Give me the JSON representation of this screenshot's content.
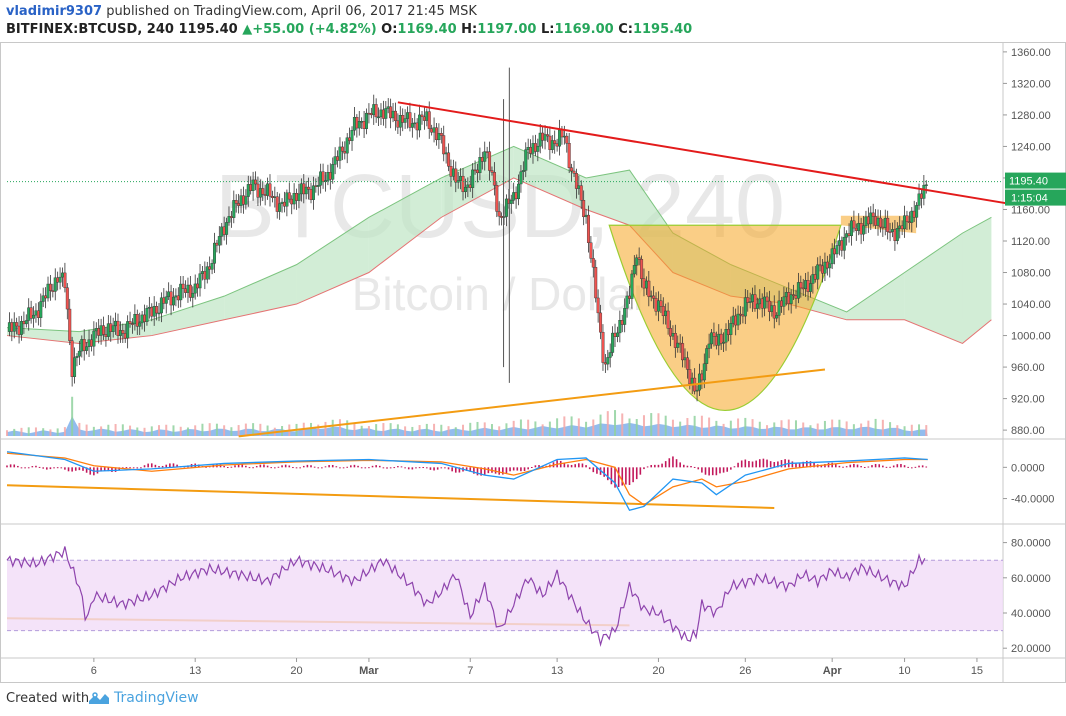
{
  "header": {
    "username": "vladimir9307",
    "published_text": " published on TradingView.com, April 06, 2017 21:45 MSK",
    "symbol": "BITFINEX:BTCUSD, 240",
    "last": " 1195.40 ",
    "change": "▲+55.00 (+4.82%)",
    "o_label": " O:",
    "o_value": "1169.40",
    "h_label": " H:",
    "h_value": "1197.00",
    "l_label": " L:",
    "l_value": "1169.00",
    "c_label": " C:",
    "c_value": "1195.40"
  },
  "watermark": {
    "line1": "BTCUSD, 240",
    "line2": "Bitcoin / Dollar"
  },
  "footer": {
    "created_with": "Created with",
    "brand": "TradingView"
  },
  "colors": {
    "up": "#26a65b",
    "down": "#ef5350",
    "trend_red": "#e31b1b",
    "trend_orange": "#f39c12",
    "cloud_green": "#bfe6c4",
    "cloud_red": "#f7c9c9",
    "cup_fill": "#f5a623",
    "rsi": "#8e44ad",
    "rsi_band": "#f1dcf7",
    "macd": "#2196f3",
    "signal": "#ff7f0e",
    "hist": "#c2185b",
    "volume": "#4a90e2"
  },
  "chart_data": {
    "type": "candlestick",
    "panes": [
      "price",
      "macd",
      "rsi"
    ],
    "price_axis": {
      "ylim": [
        870,
        1370
      ],
      "ticks": [
        1360,
        1320,
        1280,
        1240,
        1200,
        1160,
        1120,
        1080,
        1040,
        1000,
        960,
        920,
        880
      ],
      "tick_labels": [
        "1360.00",
        "1320.00",
        "1280.00",
        "1240.00",
        "1200.00",
        "1160.00",
        "1120.00",
        "1080.00",
        "1040.00",
        "1000.00",
        "960.00",
        "920.00",
        "880.00"
      ]
    },
    "last_price_label": "1195.40",
    "countdown_label": "1:15:04",
    "macd_axis": {
      "ylim": [
        -70,
        35
      ],
      "ticks": [
        0,
        -40
      ],
      "tick_labels": [
        "0.0000",
        "-40.0000"
      ]
    },
    "rsi_axis": {
      "ylim": [
        15,
        90
      ],
      "ticks": [
        80,
        60,
        40,
        20
      ],
      "tick_labels": [
        "80.0000",
        "60.0000",
        "40.0000",
        "20.0000"
      ],
      "band": [
        30,
        70
      ]
    },
    "x_axis": {
      "labels": [
        "6",
        "13",
        "20",
        "Mar",
        "7",
        "13",
        "20",
        "26",
        "Apr",
        "10",
        "15"
      ],
      "positions": [
        6,
        13,
        20,
        25,
        32,
        38,
        45,
        51,
        57,
        62,
        67
      ]
    },
    "day_range": [
      0,
      68.8
    ],
    "close_path": [
      [
        0,
        1005
      ],
      [
        1,
        1015
      ],
      [
        2,
        1030
      ],
      [
        3,
        1060
      ],
      [
        3.5,
        1075
      ],
      [
        4,
        1065
      ],
      [
        4.5,
        960
      ],
      [
        5,
        980
      ],
      [
        6,
        1000
      ],
      [
        7,
        1010
      ],
      [
        8,
        1005
      ],
      [
        9,
        1020
      ],
      [
        10,
        1030
      ],
      [
        11,
        1045
      ],
      [
        12,
        1055
      ],
      [
        13,
        1060
      ],
      [
        14,
        1090
      ],
      [
        15,
        1140
      ],
      [
        16,
        1170
      ],
      [
        17,
        1190
      ],
      [
        18,
        1180
      ],
      [
        19,
        1165
      ],
      [
        20,
        1180
      ],
      [
        21,
        1185
      ],
      [
        22,
        1200
      ],
      [
        23,
        1230
      ],
      [
        24,
        1265
      ],
      [
        25,
        1280
      ],
      [
        26,
        1285
      ],
      [
        27,
        1275
      ],
      [
        28,
        1270
      ],
      [
        29,
        1275
      ],
      [
        30,
        1245
      ],
      [
        31,
        1195
      ],
      [
        31.8,
        1190
      ],
      [
        32.5,
        1210
      ],
      [
        33,
        1240
      ],
      [
        33.5,
        1200
      ],
      [
        34,
        1150
      ],
      [
        35,
        1175
      ],
      [
        36,
        1235
      ],
      [
        37,
        1250
      ],
      [
        38,
        1245
      ],
      [
        38.5,
        1255
      ],
      [
        39,
        1210
      ],
      [
        40,
        1150
      ],
      [
        40.8,
        1030
      ],
      [
        41.3,
        960
      ],
      [
        42,
        1000
      ],
      [
        43,
        1050
      ],
      [
        43.5,
        1110
      ],
      [
        44,
        1060
      ],
      [
        45,
        1040
      ],
      [
        46,
        1000
      ],
      [
        47,
        960
      ],
      [
        47.6,
        925
      ],
      [
        48,
        950
      ],
      [
        48.5,
        1000
      ],
      [
        49,
        990
      ],
      [
        50,
        1010
      ],
      [
        51,
        1040
      ],
      [
        52,
        1045
      ],
      [
        53,
        1030
      ],
      [
        54,
        1050
      ],
      [
        55,
        1060
      ],
      [
        56,
        1080
      ],
      [
        57,
        1100
      ],
      [
        58,
        1130
      ],
      [
        59,
        1140
      ],
      [
        60,
        1150
      ],
      [
        61,
        1130
      ],
      [
        62,
        1140
      ],
      [
        63,
        1170
      ],
      [
        63.6,
        1195.4
      ]
    ],
    "spikes": [
      [
        34.7,
        940,
        1340
      ],
      [
        34.3,
        960,
        1300
      ]
    ],
    "volume_points": [
      [
        0,
        4
      ],
      [
        4,
        5
      ],
      [
        4.5,
        28
      ],
      [
        5,
        8
      ],
      [
        10,
        6
      ],
      [
        15,
        8
      ],
      [
        20,
        7
      ],
      [
        22,
        12
      ],
      [
        25,
        8
      ],
      [
        30,
        7
      ],
      [
        35,
        10
      ],
      [
        40,
        14
      ],
      [
        42,
        18
      ],
      [
        44,
        16
      ],
      [
        47,
        14
      ],
      [
        50,
        12
      ],
      [
        55,
        10
      ],
      [
        60,
        11
      ],
      [
        63.6,
        6
      ]
    ],
    "ichimoku_cloud": [
      [
        0,
        1010,
        1000
      ],
      [
        5,
        1005,
        990
      ],
      [
        10,
        1020,
        1000
      ],
      [
        15,
        1050,
        1020
      ],
      [
        20,
        1090,
        1040
      ],
      [
        25,
        1150,
        1080
      ],
      [
        30,
        1200,
        1150
      ],
      [
        35,
        1240,
        1200
      ],
      [
        40,
        1200,
        1160
      ],
      [
        43,
        1210,
        1140
      ],
      [
        46,
        1130,
        1080
      ],
      [
        50,
        1090,
        1050
      ],
      [
        54,
        1060,
        1040
      ],
      [
        58,
        1030,
        1020
      ],
      [
        62,
        1080,
        1020
      ],
      [
        66,
        1130,
        990
      ],
      [
        68,
        1150,
        1020
      ]
    ],
    "cup": {
      "rim_start": [
        41.6,
        1140
      ],
      "rim_end": [
        57.6,
        1140
      ],
      "bottom": [
        49.6,
        905
      ],
      "handle_top": 1152,
      "handle_end": [
        62.8,
        1152
      ]
    },
    "trendlines": {
      "resistance": [
        [
          27,
          1296
        ],
        [
          69,
          1168
        ]
      ],
      "support": [
        [
          16,
          872
        ],
        [
          56.5,
          957
        ]
      ],
      "macd_line": [
        [
          0,
          -23
        ],
        [
          53,
          -52
        ]
      ],
      "rsi_line": [
        [
          0,
          37
        ],
        [
          43,
          33
        ]
      ]
    },
    "macd_path": [
      [
        0,
        20
      ],
      [
        4,
        10
      ],
      [
        6,
        -5
      ],
      [
        10,
        -2
      ],
      [
        15,
        5
      ],
      [
        20,
        8
      ],
      [
        25,
        10
      ],
      [
        30,
        5
      ],
      [
        33,
        -10
      ],
      [
        35,
        -15
      ],
      [
        38,
        10
      ],
      [
        40,
        12
      ],
      [
        42,
        -20
      ],
      [
        43,
        -55
      ],
      [
        44,
        -50
      ],
      [
        46,
        -15
      ],
      [
        48,
        -20
      ],
      [
        49,
        -35
      ],
      [
        51,
        -10
      ],
      [
        54,
        5
      ],
      [
        58,
        8
      ],
      [
        62,
        12
      ],
      [
        63.6,
        10
      ]
    ],
    "signal_path": [
      [
        0,
        18
      ],
      [
        4,
        12
      ],
      [
        6,
        2
      ],
      [
        10,
        -5
      ],
      [
        15,
        3
      ],
      [
        20,
        7
      ],
      [
        25,
        9
      ],
      [
        30,
        7
      ],
      [
        33,
        -2
      ],
      [
        35,
        -10
      ],
      [
        38,
        4
      ],
      [
        40,
        10
      ],
      [
        42,
        0
      ],
      [
        43,
        -35
      ],
      [
        44,
        -48
      ],
      [
        46,
        -25
      ],
      [
        48,
        -15
      ],
      [
        49,
        -25
      ],
      [
        51,
        -18
      ],
      [
        54,
        -2
      ],
      [
        58,
        6
      ],
      [
        62,
        10
      ],
      [
        63.6,
        10
      ]
    ],
    "rsi_path": [
      [
        0,
        70
      ],
      [
        2,
        68
      ],
      [
        4,
        75
      ],
      [
        5,
        55
      ],
      [
        5.5,
        35
      ],
      [
        6,
        50
      ],
      [
        8,
        45
      ],
      [
        10,
        50
      ],
      [
        12,
        60
      ],
      [
        14,
        65
      ],
      [
        16,
        62
      ],
      [
        18,
        58
      ],
      [
        20,
        70
      ],
      [
        22,
        65
      ],
      [
        24,
        58
      ],
      [
        26,
        70
      ],
      [
        28,
        55
      ],
      [
        29,
        45
      ],
      [
        30,
        52
      ],
      [
        31,
        62
      ],
      [
        32,
        38
      ],
      [
        33,
        55
      ],
      [
        34,
        30
      ],
      [
        35,
        45
      ],
      [
        36,
        60
      ],
      [
        37,
        50
      ],
      [
        38,
        62
      ],
      [
        39,
        48
      ],
      [
        40,
        35
      ],
      [
        41,
        25
      ],
      [
        42,
        30
      ],
      [
        43,
        55
      ],
      [
        44,
        42
      ],
      [
        45,
        40
      ],
      [
        47,
        25
      ],
      [
        47.6,
        28
      ],
      [
        48,
        45
      ],
      [
        49,
        40
      ],
      [
        50,
        55
      ],
      [
        52,
        60
      ],
      [
        54,
        55
      ],
      [
        55,
        62
      ],
      [
        56,
        58
      ],
      [
        57,
        64
      ],
      [
        58,
        60
      ],
      [
        59,
        66
      ],
      [
        60,
        62
      ],
      [
        61,
        58
      ],
      [
        62,
        55
      ],
      [
        63,
        70
      ],
      [
        63.6,
        71
      ]
    ]
  }
}
